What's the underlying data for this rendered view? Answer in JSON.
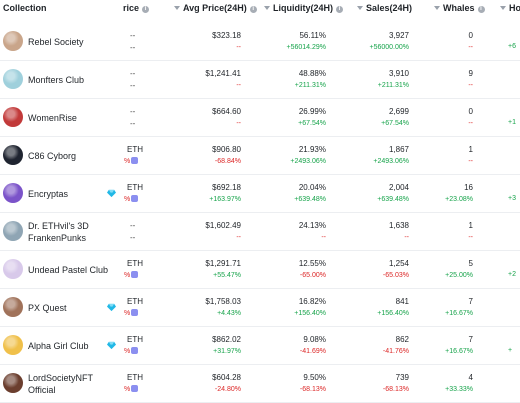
{
  "header": {
    "collection": "Collection",
    "price": "rice",
    "avg_price": "Avg Price(24H)",
    "liquidity": "Liquidity(24H)",
    "sales": "Sales(24H)",
    "whales": "Whales",
    "holders": "Ho"
  },
  "rows": [
    {
      "name": "Rebel Society",
      "price_top": "--",
      "price_sub": "--",
      "price_pct": "",
      "avg": "$323.18",
      "avg_chg": "--",
      "liq": "56.11%",
      "liq_chg": "+56014.29%",
      "sales": "3,927",
      "sales_chg": "+56000.00%",
      "whales": "0",
      "whales_chg": "--",
      "edge": "+6",
      "gem": false,
      "avatar": "#c9a58a"
    },
    {
      "name": "Monfters Club",
      "price_top": "--",
      "price_sub": "--",
      "price_pct": "",
      "avg": "$1,241.41",
      "avg_chg": "--",
      "liq": "48.88%",
      "liq_chg": "+211.31%",
      "sales": "3,910",
      "sales_chg": "+211.31%",
      "whales": "9",
      "whales_chg": "--",
      "edge": "",
      "gem": false,
      "avatar": "#9fd0dc"
    },
    {
      "name": "WomenRise",
      "price_top": "--",
      "price_sub": "--",
      "price_pct": "",
      "avg": "$664.60",
      "avg_chg": "--",
      "liq": "26.99%",
      "liq_chg": "+67.54%",
      "sales": "2,699",
      "sales_chg": "+67.54%",
      "whales": "0",
      "whales_chg": "--",
      "edge": "+1",
      "gem": false,
      "avatar": "#c23a3a"
    },
    {
      "name": "C86 Cyborg",
      "price_top": "ETH",
      "price_sub": "",
      "price_pct": "%",
      "avg": "$906.80",
      "avg_chg": "-68.84%",
      "liq": "21.93%",
      "liq_chg": "+2493.06%",
      "sales": "1,867",
      "sales_chg": "+2493.06%",
      "whales": "1",
      "whales_chg": "--",
      "edge": "",
      "gem": false,
      "avatar": "#1f2430"
    },
    {
      "name": "Encryptas",
      "price_top": "ETH",
      "price_sub": "",
      "price_pct": "%",
      "avg": "$692.18",
      "avg_chg": "+163.97%",
      "liq": "20.04%",
      "liq_chg": "+639.48%",
      "sales": "2,004",
      "sales_chg": "+639.48%",
      "whales": "16",
      "whales_chg": "+23.08%",
      "edge": "+3",
      "gem": true,
      "avatar": "#7b53c9"
    },
    {
      "name": "Dr. ETHvil's 3D FrankenPunks",
      "price_top": "--",
      "price_sub": "--",
      "price_pct": "",
      "avg": "$1,602.49",
      "avg_chg": "--",
      "liq": "24.13%",
      "liq_chg": "--",
      "sales": "1,638",
      "sales_chg": "--",
      "whales": "1",
      "whales_chg": "--",
      "edge": "",
      "gem": false,
      "avatar": "#8fa5b4"
    },
    {
      "name": "Undead Pastel Club",
      "price_top": "ETH",
      "price_sub": "",
      "price_pct": "%",
      "avg": "$1,291.71",
      "avg_chg": "+55.47%",
      "liq": "12.55%",
      "liq_chg": "-65.00%",
      "sales": "1,254",
      "sales_chg": "-65.03%",
      "whales": "5",
      "whales_chg": "+25.00%",
      "edge": "+2",
      "gem": false,
      "avatar": "#d8c9ea"
    },
    {
      "name": "PX Quest",
      "price_top": "ETH",
      "price_sub": "",
      "price_pct": "%",
      "avg": "$1,758.03",
      "avg_chg": "+4.43%",
      "liq": "16.82%",
      "liq_chg": "+156.40%",
      "sales": "841",
      "sales_chg": "+156.40%",
      "whales": "7",
      "whales_chg": "+16.67%",
      "edge": "",
      "gem": true,
      "avatar": "#a0725a"
    },
    {
      "name": "Alpha Girl Club",
      "price_top": "ETH",
      "price_sub": "",
      "price_pct": "%",
      "avg": "$862.02",
      "avg_chg": "+31.97%",
      "liq": "9.08%",
      "liq_chg": "-41.69%",
      "sales": "862",
      "sales_chg": "-41.76%",
      "whales": "7",
      "whales_chg": "+16.67%",
      "edge": "+",
      "gem": true,
      "avatar": "#f0c04a"
    },
    {
      "name": "LordSocietyNFT Official",
      "price_top": "ETH",
      "price_sub": "",
      "price_pct": "%",
      "avg": "$604.28",
      "avg_chg": "-24.80%",
      "liq": "9.50%",
      "liq_chg": "-68.13%",
      "sales": "739",
      "sales_chg": "-68.13%",
      "whales": "4",
      "whales_chg": "+33.33%",
      "edge": "",
      "gem": false,
      "avatar": "#6b3e2e"
    }
  ]
}
